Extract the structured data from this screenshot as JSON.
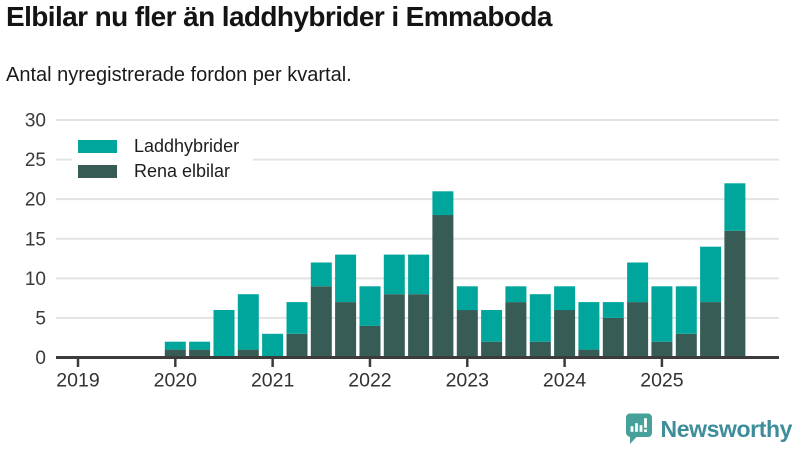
{
  "header": {
    "title": "Elbilar nu fler än laddhybrider i Emmaboda",
    "subtitle": "Antal nyregistrerade fordon per kvartal."
  },
  "footer": {
    "brand": "Newsworthy",
    "logo_icon": "newsworthy-speech-bubble-bar-chart-icon",
    "brand_text_color": "#3E8D9B",
    "icon_color": "#47A19B"
  },
  "chart_data": {
    "type": "bar",
    "stacked": true,
    "title": "Elbilar nu fler än laddhybrider i Emmaboda",
    "subtitle": "Antal nyregistrerade fordon per kvartal.",
    "categories": [
      "2019 Q1",
      "2019 Q2",
      "2019 Q3",
      "2019 Q4",
      "2020 Q1",
      "2020 Q2",
      "2020 Q3",
      "2020 Q4",
      "2021 Q1",
      "2021 Q2",
      "2021 Q3",
      "2021 Q4",
      "2022 Q1",
      "2022 Q2",
      "2022 Q3",
      "2022 Q4",
      "2023 Q1",
      "2023 Q2",
      "2023 Q3",
      "2023 Q4",
      "2024 Q1",
      "2024 Q2",
      "2024 Q3",
      "2024 Q4",
      "2025 Q1",
      "2025 Q2",
      "2025 Q3",
      "2025 Q4"
    ],
    "series": [
      {
        "name": "Laddhybrider",
        "color": "#00A69C",
        "values": [
          0,
          0,
          0,
          0,
          1,
          1,
          6,
          7,
          3,
          4,
          3,
          6,
          5,
          5,
          5,
          3,
          3,
          4,
          2,
          6,
          3,
          6,
          2,
          5,
          7,
          6,
          7,
          6
        ]
      },
      {
        "name": "Rena elbilar",
        "color": "#375C55",
        "values": [
          0,
          0,
          0,
          0,
          1,
          1,
          0,
          1,
          0,
          3,
          9,
          7,
          4,
          8,
          8,
          18,
          6,
          2,
          7,
          2,
          6,
          1,
          5,
          7,
          2,
          3,
          7,
          16
        ]
      }
    ],
    "stack_order_bottom_to_top": [
      "Rena elbilar",
      "Laddhybrider"
    ],
    "ylim": [
      0,
      30
    ],
    "y_ticks": [
      0,
      5,
      10,
      15,
      20,
      25,
      30
    ],
    "x_tick_labels": [
      "2019",
      "2020",
      "2021",
      "2022",
      "2023",
      "2024",
      "2025"
    ],
    "x_tick_quarter_indices": [
      0,
      4,
      8,
      12,
      16,
      20,
      24
    ],
    "grid": "horizontal",
    "gridline_color": "#E3E3E3",
    "axis_color": "#3B3B3B",
    "tick_label_color": "#333333",
    "legend_position": "top-left"
  }
}
